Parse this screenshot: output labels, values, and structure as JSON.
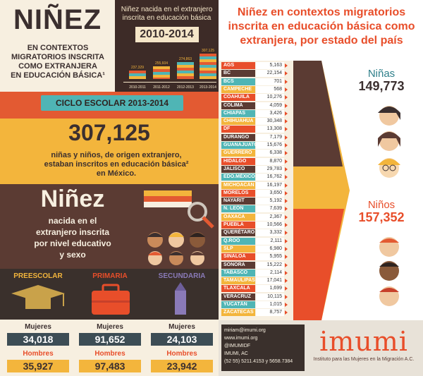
{
  "title": {
    "main": "NIÑEZ",
    "sub_lines": [
      "EN CONTEXTOS",
      "MIGRATORIOS INSCRITA",
      "COMO EXTRANJERA",
      "EN EDUCACIÓN BÁSICA¹"
    ]
  },
  "trend": {
    "title_lines": [
      "Niñez nacida en el extranjero",
      "inscrita en educación básica"
    ],
    "range": "2010-2014",
    "values": [
      "237,329",
      "255,604",
      "274,863",
      "307,125"
    ],
    "years": [
      "2010-2011",
      "2011-2012",
      "2012-2013",
      "2013-2014"
    ]
  },
  "cycle": {
    "label": "CICLO ESCOLAR 2013-2014",
    "total": "307,125",
    "desc_lines": [
      "niñas y niños, de origen extranjero,",
      "estaban inscritos en educación básica²",
      "en México."
    ]
  },
  "level": {
    "title": "Niñez",
    "sub_lines": [
      "nacida en el",
      "extranjero inscrita",
      "por nivel educativo",
      "y sexo"
    ]
  },
  "education": {
    "levels": [
      {
        "label": "PREESCOLAR",
        "women": "34,018",
        "men": "35,927",
        "color": "#f3b53c"
      },
      {
        "label": "PRIMARIA",
        "women": "91,652",
        "men": "97,483",
        "color": "#e84e2a"
      },
      {
        "label": "SECUNDARIA",
        "women": "24,103",
        "men": "23,942",
        "color": "#8a7ab8"
      }
    ],
    "women_label": "Mujeres",
    "men_label": "Hombres"
  },
  "states": {
    "title_lines": [
      "Niñez en contextos migratorios",
      "inscrita en educación básica como",
      "extranjera, por estado del país"
    ],
    "items": [
      {
        "name": "AGS",
        "value": "5,163"
      },
      {
        "name": "BC",
        "value": "22,154"
      },
      {
        "name": "BCS",
        "value": "701"
      },
      {
        "name": "CAMPECHE",
        "value": "568"
      },
      {
        "name": "COAHUILA",
        "value": "10,276"
      },
      {
        "name": "COLIMA",
        "value": "4,059"
      },
      {
        "name": "CHIAPAS",
        "value": "3,426"
      },
      {
        "name": "CHIHUAHUA",
        "value": "30,348"
      },
      {
        "name": "DF",
        "value": "13,308"
      },
      {
        "name": "DURANGO",
        "value": "7,179"
      },
      {
        "name": "GUANAJUATO",
        "value": "15,676"
      },
      {
        "name": "GUERRERO",
        "value": "6,338"
      },
      {
        "name": "HIDALGO",
        "value": "8,870"
      },
      {
        "name": "JALISCO",
        "value": "29,783"
      },
      {
        "name": "EDO.MÉXICO",
        "value": "16,762"
      },
      {
        "name": "MICHOACÁN",
        "value": "16,197"
      },
      {
        "name": "MORELOS",
        "value": "3,650"
      },
      {
        "name": "NAYARIT",
        "value": "5,192"
      },
      {
        "name": "N. LEÓN",
        "value": "7,639"
      },
      {
        "name": "OAXACA",
        "value": "2,367"
      },
      {
        "name": "PUEBLA",
        "value": "10,566"
      },
      {
        "name": "QUERÉTARO",
        "value": "3,332"
      },
      {
        "name": "Q.ROO",
        "value": "2,111"
      },
      {
        "name": "SLP",
        "value": "6,980"
      },
      {
        "name": "SINALOA",
        "value": "5,955"
      },
      {
        "name": "SONORA",
        "value": "15,222"
      },
      {
        "name": "TABASCO",
        "value": "2,114"
      },
      {
        "name": "TAMAULIPAS",
        "value": "17,041"
      },
      {
        "name": "TLAXCALA",
        "value": "1,699"
      },
      {
        "name": "VERACRUZ",
        "value": "10,115"
      },
      {
        "name": "YUCATÁN",
        "value": "1,015"
      },
      {
        "name": "ZACATECAS",
        "value": "8,757"
      }
    ],
    "row_colors": [
      "#e84e2a",
      "#5b3b33",
      "#4fb5b5",
      "#f3b53c"
    ]
  },
  "gender": {
    "girls_label": "Niñas",
    "girls_value": "149,773",
    "boys_label": "Niños",
    "boys_value": "157,352"
  },
  "contact": {
    "lines": [
      "miriam@imumi.org",
      "www.imumi.org",
      "@IMUMIDF",
      "IMUMI, AC",
      "(52 55) 5211.4153 y 5658.7384"
    ]
  },
  "logo": {
    "name": "imumi",
    "subtitle": "Instituto para las Mujeres en la Migración A.C."
  }
}
